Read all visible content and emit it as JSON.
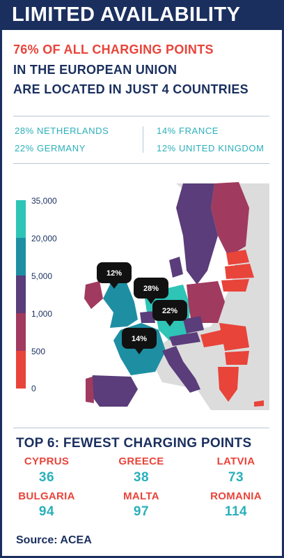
{
  "header": {
    "title": "LIMITED AVAILABILITY"
  },
  "headline": {
    "line1": "76% OF ALL CHARGING POINTS",
    "line2": "IN THE EUROPEAN UNION",
    "line3": "ARE LOCATED IN JUST 4 COUNTRIES"
  },
  "shares": [
    {
      "label": "28% NETHERLANDS"
    },
    {
      "label": "22% GERMANY"
    },
    {
      "label": "14% FRANCE"
    },
    {
      "label": "12% UNITED KINGDOM"
    }
  ],
  "legend": {
    "ticks": [
      "35,000",
      "20,000",
      "5,000",
      "1,000",
      "500",
      "0"
    ],
    "colors": [
      "#2ec4b6",
      "#1e8fa3",
      "#5a3d7a",
      "#a13a5f",
      "#e8443a"
    ]
  },
  "map_pins": [
    {
      "label": "12%",
      "country": "United Kingdom"
    },
    {
      "label": "28%",
      "country": "Netherlands"
    },
    {
      "label": "22%",
      "country": "Germany"
    },
    {
      "label": "14%",
      "country": "France"
    }
  ],
  "fewest": {
    "title": "TOP 6: FEWEST CHARGING POINTS",
    "countries": [
      {
        "name": "CYPRUS",
        "value": "36"
      },
      {
        "name": "GREECE",
        "value": "38"
      },
      {
        "name": "LATVIA",
        "value": "73"
      },
      {
        "name": "BULGARIA",
        "value": "94"
      },
      {
        "name": "MALTA",
        "value": "97"
      },
      {
        "name": "ROMANIA",
        "value": "114"
      }
    ]
  },
  "source": "Source: ACEA",
  "colors": {
    "navy": "#1a2f5e",
    "red": "#e8443a",
    "teal": "#2ab0ba",
    "rule": "#b8c6d6"
  }
}
